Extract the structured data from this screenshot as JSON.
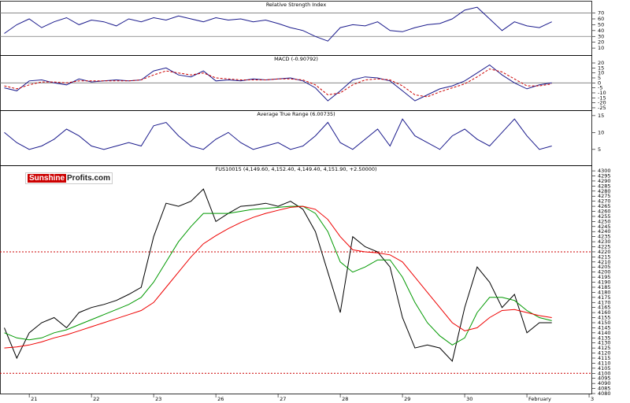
{
  "logo": {
    "sunshine": "Sunshine",
    "profits": "Profits.com"
  },
  "chart_data": [
    {
      "type": "line",
      "title": "Relative Strength Index",
      "x": [
        -0.4,
        -0.2,
        0,
        0.2,
        0.4,
        0.6,
        0.8,
        1,
        1.2,
        1.4,
        1.6,
        1.8,
        2,
        2.2,
        2.4,
        2.6,
        2.8,
        3,
        3.2,
        3.4,
        3.6,
        3.8,
        4,
        4.2,
        4.4,
        4.6,
        4.8,
        5,
        5.2,
        5.4,
        5.6,
        5.8,
        6,
        6.2,
        6.4,
        6.6,
        6.8,
        7,
        7.2,
        7.4,
        7.6,
        7.8,
        8,
        8.2,
        8.4
      ],
      "xlim": [
        -0.47,
        9.05
      ],
      "ylim": [
        -2,
        91
      ],
      "yticks": [
        70,
        60,
        50,
        40,
        30,
        20,
        10
      ],
      "hlines": [
        70,
        30
      ],
      "series": [
        {
          "color": "#1a1a8c",
          "values": [
            35,
            50,
            60,
            45,
            55,
            62,
            50,
            58,
            55,
            48,
            60,
            55,
            62,
            58,
            65,
            60,
            55,
            62,
            58,
            60,
            55,
            58,
            52,
            45,
            40,
            30,
            22,
            45,
            50,
            48,
            55,
            40,
            38,
            45,
            50,
            52,
            60,
            75,
            80,
            60,
            40,
            55,
            48,
            45,
            55
          ]
        }
      ]
    },
    {
      "type": "line",
      "title": "MACD (-0.90792)",
      "x": [
        -0.4,
        -0.2,
        0,
        0.2,
        0.4,
        0.6,
        0.8,
        1,
        1.2,
        1.4,
        1.6,
        1.8,
        2,
        2.2,
        2.4,
        2.6,
        2.8,
        3,
        3.2,
        3.4,
        3.6,
        3.8,
        4,
        4.2,
        4.4,
        4.6,
        4.8,
        5,
        5.2,
        5.4,
        5.6,
        5.8,
        6,
        6.2,
        6.4,
        6.6,
        6.8,
        7,
        7.2,
        7.4,
        7.6,
        7.8,
        8,
        8.2,
        8.4
      ],
      "xlim": [
        -0.47,
        9.05
      ],
      "ylim": [
        -27.4,
        27.9
      ],
      "yticks": [
        20,
        15,
        10,
        5,
        0,
        -5,
        -10,
        -15,
        -20,
        -25
      ],
      "hlines": [
        0
      ],
      "series": [
        {
          "color": "#1a1a8c",
          "values": [
            -5,
            -8,
            2,
            3,
            0,
            -2,
            4,
            1,
            2,
            3,
            2,
            3,
            12,
            15,
            8,
            6,
            12,
            2,
            3,
            2,
            4,
            3,
            4,
            5,
            2,
            -5,
            -18,
            -8,
            3,
            6,
            5,
            2,
            -8,
            -18,
            -12,
            -6,
            -3,
            2,
            10,
            18,
            8,
            0,
            -6,
            -2,
            0
          ]
        },
        {
          "color": "#cc0000",
          "dashed": true,
          "values": [
            -3,
            -6,
            -2,
            1,
            1,
            0,
            2,
            2,
            2,
            2,
            2,
            3,
            8,
            12,
            10,
            8,
            10,
            5,
            4,
            3,
            3,
            3,
            4,
            4,
            3,
            -2,
            -12,
            -10,
            -2,
            3,
            4,
            3,
            -3,
            -12,
            -14,
            -9,
            -5,
            -1,
            6,
            14,
            11,
            4,
            -3,
            -3,
            -1
          ]
        }
      ]
    },
    {
      "type": "line",
      "title": "Average True Range (6.00735)",
      "x": [
        -0.4,
        -0.2,
        0,
        0.2,
        0.4,
        0.6,
        0.8,
        1,
        1.2,
        1.4,
        1.6,
        1.8,
        2,
        2.2,
        2.4,
        2.6,
        2.8,
        3,
        3.2,
        3.4,
        3.6,
        3.8,
        4,
        4.2,
        4.4,
        4.6,
        4.8,
        5,
        5.2,
        5.4,
        5.6,
        5.8,
        6,
        6.2,
        6.4,
        6.6,
        6.8,
        7,
        7.2,
        7.4,
        7.6,
        7.8,
        8,
        8.2,
        8.4
      ],
      "xlim": [
        -0.47,
        9.05
      ],
      "ylim": [
        0.3,
        16.6
      ],
      "yticks": [
        15,
        10,
        5
      ],
      "series": [
        {
          "color": "#1a1a8c",
          "values": [
            10,
            7,
            5,
            6,
            8,
            11,
            9,
            6,
            5,
            6,
            7,
            6,
            12,
            13,
            9,
            6,
            5,
            8,
            10,
            7,
            5,
            6,
            7,
            5,
            6,
            9,
            13,
            7,
            5,
            8,
            11,
            6,
            14,
            9,
            7,
            5,
            9,
            11,
            8,
            6,
            10,
            14,
            9,
            5,
            6
          ]
        }
      ]
    },
    {
      "type": "line",
      "title": "FUS10015 (4,149.60, 4,152.40, 4,149.40, 4,151.90, +2.50000)",
      "x": [
        -0.4,
        -0.2,
        0,
        0.2,
        0.4,
        0.6,
        0.8,
        1,
        1.2,
        1.4,
        1.6,
        1.8,
        2,
        2.2,
        2.4,
        2.6,
        2.8,
        3,
        3.2,
        3.4,
        3.6,
        3.8,
        4,
        4.2,
        4.4,
        4.6,
        4.8,
        5,
        5.2,
        5.4,
        5.6,
        5.8,
        6,
        6.2,
        6.4,
        6.6,
        6.8,
        7,
        7.2,
        7.4,
        7.6,
        7.8,
        8,
        8.2,
        8.4
      ],
      "xlim": [
        -0.47,
        9.05
      ],
      "ylim": [
        4080,
        4305.5
      ],
      "yticks": [
        4300,
        4295,
        4290,
        4285,
        4280,
        4275,
        4270,
        4265,
        4260,
        4255,
        4250,
        4245,
        4240,
        4235,
        4230,
        4225,
        4220,
        4215,
        4210,
        4205,
        4200,
        4195,
        4190,
        4185,
        4180,
        4175,
        4170,
        4165,
        4160,
        4155,
        4150,
        4145,
        4140,
        4135,
        4130,
        4125,
        4120,
        4115,
        4110,
        4105,
        4100,
        4095,
        4090,
        4085,
        4080
      ],
      "xticks": [
        {
          "value": 0,
          "label": "21"
        },
        {
          "value": 1,
          "label": "22"
        },
        {
          "value": 2,
          "label": "23"
        },
        {
          "value": 3,
          "label": "26"
        },
        {
          "value": 4,
          "label": "27"
        },
        {
          "value": 5,
          "label": "28"
        },
        {
          "value": 6,
          "label": "29"
        },
        {
          "value": 7,
          "label": "30"
        },
        {
          "value": 8,
          "label": "February"
        },
        {
          "value": 9,
          "label": "3"
        }
      ],
      "hlines": [
        4220,
        4100
      ],
      "hline_color": "#cc0000",
      "series": [
        {
          "color": "#000000",
          "values": [
            4145,
            4115,
            4140,
            4150,
            4155,
            4145,
            4160,
            4165,
            4168,
            4172,
            4178,
            4185,
            4235,
            4268,
            4265,
            4270,
            4282,
            4250,
            4258,
            4265,
            4266,
            4268,
            4265,
            4270,
            4262,
            4240,
            4200,
            4160,
            4235,
            4225,
            4220,
            4205,
            4155,
            4125,
            4128,
            4125,
            4112,
            4165,
            4205,
            4190,
            4165,
            4178,
            4140,
            4150,
            4150
          ]
        },
        {
          "color": "#009900",
          "values": [
            4140,
            4135,
            4133,
            4135,
            4140,
            4143,
            4148,
            4153,
            4158,
            4163,
            4168,
            4175,
            4190,
            4210,
            4230,
            4245,
            4258,
            4258,
            4258,
            4260,
            4262,
            4263,
            4264,
            4265,
            4265,
            4258,
            4240,
            4210,
            4200,
            4205,
            4212,
            4212,
            4195,
            4170,
            4150,
            4137,
            4128,
            4135,
            4160,
            4175,
            4175,
            4172,
            4162,
            4155,
            4152
          ]
        },
        {
          "color": "#ee0000",
          "values": [
            4125,
            4126,
            4128,
            4131,
            4135,
            4138,
            4142,
            4146,
            4150,
            4154,
            4158,
            4162,
            4170,
            4185,
            4200,
            4215,
            4228,
            4236,
            4243,
            4249,
            4254,
            4258,
            4261,
            4264,
            4265,
            4262,
            4252,
            4235,
            4222,
            4220,
            4219,
            4217,
            4210,
            4195,
            4180,
            4165,
            4150,
            4142,
            4145,
            4155,
            4162,
            4163,
            4160,
            4157,
            4155
          ]
        }
      ]
    }
  ]
}
